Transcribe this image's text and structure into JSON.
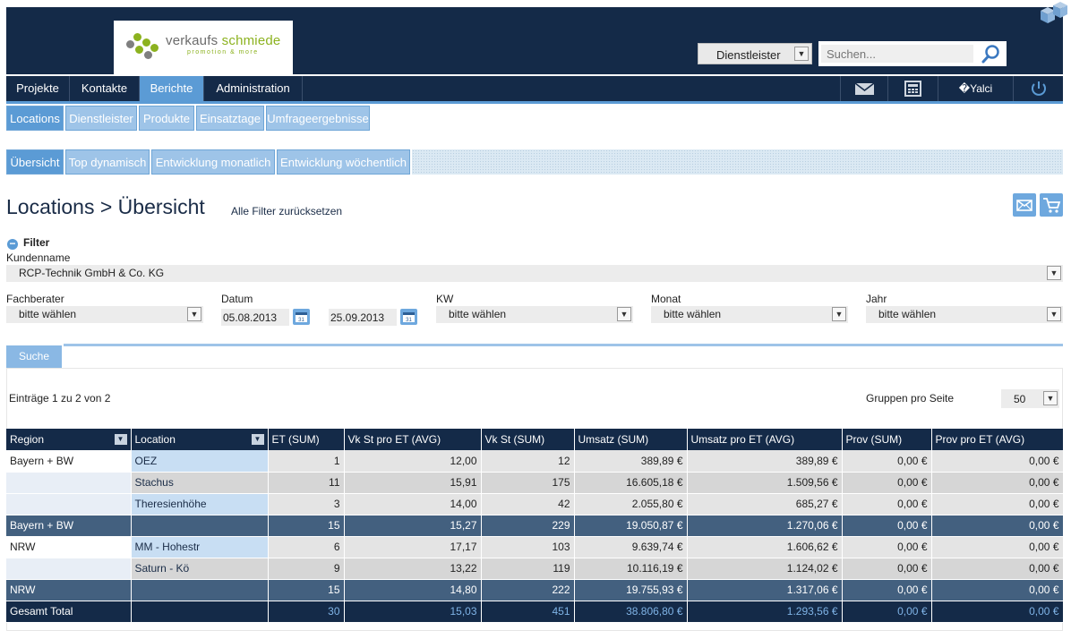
{
  "header": {
    "logo_brand_1": "verkaufs",
    "logo_brand_2": "schmiede",
    "logo_tagline": "promotion & more",
    "search_scope": "Dienstleister",
    "search_placeholder": "Suchen..."
  },
  "mainnav": {
    "items": [
      "Projekte",
      "Kontakte",
      "Berichte",
      "Administration"
    ],
    "active": "Berichte",
    "user": "�Yalci",
    "icons": [
      "mail-icon",
      "calculator-icon",
      "user-icon",
      "power-icon"
    ]
  },
  "subnav": {
    "items": [
      "Locations",
      "Dienstleister",
      "Produkte",
      "Einsatztage",
      "Umfrageergebnisse"
    ],
    "active": "Locations"
  },
  "reportnav": {
    "items": [
      "Übersicht",
      "Top dynamisch",
      "Entwicklung monatlich",
      "Entwicklung wöchentlich"
    ],
    "active": "Übersicht"
  },
  "page": {
    "title": "Locations > Übersicht",
    "reset_link": "Alle Filter zurücksetzen"
  },
  "filter": {
    "title": "Filter",
    "kundenname_label": "Kundenname",
    "kundenname_value": "RCP-Technik GmbH & Co. KG",
    "fachberater_label": "Fachberater",
    "fachberater_value": "bitte wählen",
    "datum_label": "Datum",
    "datum_from": "05.08.2013",
    "datum_to": "25.09.2013",
    "kw_label": "KW",
    "kw_value": "bitte wählen",
    "monat_label": "Monat",
    "monat_value": "bitte wählen",
    "jahr_label": "Jahr",
    "jahr_value": "bitte wählen",
    "search_button": "Suche"
  },
  "results": {
    "entries": "Einträge 1 zu 2 von 2",
    "groups_label": "Gruppen pro Seite",
    "groups_value": "50"
  },
  "table": {
    "columns": [
      "Region",
      "Location",
      "ET (SUM)",
      "Vk St pro ET (AVG)",
      "Vk St (SUM)",
      "Umsatz (SUM)",
      "Umsatz pro ET (AVG)",
      "Prov (SUM)",
      "Prov pro ET (AVG)"
    ],
    "rows": [
      {
        "type": "data",
        "region": "Bayern + BW",
        "location": "OEZ",
        "et": "1",
        "vk_avg": "12,00",
        "vk_sum": "12",
        "umsatz": "389,89 €",
        "umsatz_avg": "389,89 €",
        "prov": "0,00 €",
        "prov_avg": "0,00 €"
      },
      {
        "type": "data",
        "region": "",
        "location": "Stachus",
        "et": "11",
        "vk_avg": "15,91",
        "vk_sum": "175",
        "umsatz": "16.605,18 €",
        "umsatz_avg": "1.509,56 €",
        "prov": "0,00 €",
        "prov_avg": "0,00 €"
      },
      {
        "type": "data",
        "region": "",
        "location": "Theresienhöhe",
        "et": "3",
        "vk_avg": "14,00",
        "vk_sum": "42",
        "umsatz": "2.055,80 €",
        "umsatz_avg": "685,27 €",
        "prov": "0,00 €",
        "prov_avg": "0,00 €"
      },
      {
        "type": "sub",
        "region": "Bayern + BW",
        "location": "",
        "et": "15",
        "vk_avg": "15,27",
        "vk_sum": "229",
        "umsatz": "19.050,87 €",
        "umsatz_avg": "1.270,06 €",
        "prov": "0,00 €",
        "prov_avg": "0,00 €"
      },
      {
        "type": "data",
        "region": "NRW",
        "location": "MM - Hohestr",
        "et": "6",
        "vk_avg": "17,17",
        "vk_sum": "103",
        "umsatz": "9.639,74 €",
        "umsatz_avg": "1.606,62 €",
        "prov": "0,00 €",
        "prov_avg": "0,00 €"
      },
      {
        "type": "data",
        "region": "",
        "location": "Saturn - Kö",
        "et": "9",
        "vk_avg": "13,22",
        "vk_sum": "119",
        "umsatz": "10.116,19 €",
        "umsatz_avg": "1.124,02 €",
        "prov": "0,00 €",
        "prov_avg": "0,00 €"
      },
      {
        "type": "sub",
        "region": "NRW",
        "location": "",
        "et": "15",
        "vk_avg": "14,80",
        "vk_sum": "222",
        "umsatz": "19.755,93 €",
        "umsatz_avg": "1.317,06 €",
        "prov": "0,00 €",
        "prov_avg": "0,00 €"
      },
      {
        "type": "total",
        "region": "Gesamt Total",
        "location": "",
        "et": "30",
        "vk_avg": "15,03",
        "vk_sum": "451",
        "umsatz": "38.806,80 €",
        "umsatz_avg": "1.293,56 €",
        "prov": "0,00 €",
        "prov_avg": "0,00 €"
      }
    ]
  },
  "colors": {
    "navy": "#142a48",
    "accent_blue": "#5b9bd5",
    "logo_green": "#8cb21f"
  }
}
